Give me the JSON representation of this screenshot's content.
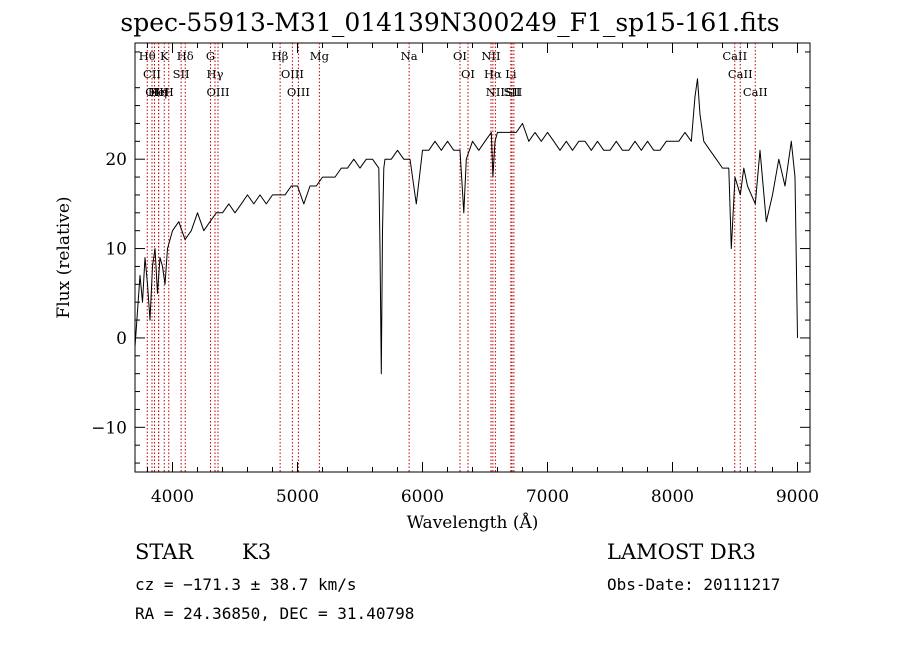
{
  "chart_data": {
    "type": "line",
    "title": "spec-55913-M31_014139N300249_F1_sp15-161.fits",
    "xlabel": "Wavelength (Å)",
    "ylabel": "Flux (relative)",
    "xlim": [
      3700,
      9100
    ],
    "ylim": [
      -15,
      33
    ],
    "xticks": [
      4000,
      5000,
      6000,
      7000,
      8000,
      9000
    ],
    "yticks": [
      -10,
      0,
      10,
      20
    ],
    "grid": false,
    "series": [
      {
        "x": [
          3700,
          3720,
          3740,
          3760,
          3780,
          3800,
          3820,
          3840,
          3860,
          3880,
          3900,
          3920,
          3940,
          3960,
          3980,
          4000,
          4050,
          4100,
          4150,
          4200,
          4250,
          4300,
          4350,
          4400,
          4450,
          4500,
          4550,
          4600,
          4650,
          4700,
          4750,
          4800,
          4850,
          4900,
          4950,
          5000,
          5050,
          5100,
          5150,
          5200,
          5250,
          5300,
          5350,
          5400,
          5450,
          5500,
          5550,
          5600,
          5650,
          5660,
          5670,
          5680,
          5690,
          5700,
          5750,
          5800,
          5850,
          5900,
          5950,
          6000,
          6050,
          6100,
          6150,
          6200,
          6250,
          6300,
          6330,
          6350,
          6400,
          6450,
          6500,
          6550,
          6563,
          6580,
          6600,
          6650,
          6700,
          6750,
          6800,
          6850,
          6900,
          6950,
          7000,
          7050,
          7100,
          7150,
          7200,
          7250,
          7300,
          7350,
          7400,
          7450,
          7500,
          7550,
          7600,
          7650,
          7700,
          7750,
          7800,
          7850,
          7900,
          7950,
          8000,
          8050,
          8100,
          8150,
          8180,
          8200,
          8220,
          8250,
          8300,
          8350,
          8400,
          8450,
          8470,
          8500,
          8542,
          8570,
          8600,
          8662,
          8700,
          8750,
          8800,
          8850,
          8900,
          8950,
          8980,
          9000
        ],
        "y": [
          -1,
          3,
          7,
          4,
          9,
          6,
          2,
          8,
          10,
          5,
          9,
          8,
          6,
          10,
          11,
          12,
          13,
          11,
          12,
          14,
          12,
          13,
          14,
          14,
          15,
          14,
          15,
          16,
          15,
          16,
          15,
          16,
          16,
          16,
          17,
          17,
          15,
          17,
          17,
          18,
          18,
          18,
          19,
          19,
          20,
          19,
          20,
          20,
          19,
          10,
          -4,
          12,
          19,
          20,
          20,
          21,
          20,
          20,
          15,
          21,
          21,
          22,
          21,
          22,
          21,
          21,
          14,
          20,
          22,
          21,
          22,
          23,
          18,
          22,
          23,
          23,
          23,
          23,
          24,
          22,
          23,
          22,
          23,
          22,
          21,
          22,
          21,
          22,
          22,
          21,
          22,
          21,
          21,
          22,
          21,
          21,
          22,
          21,
          22,
          21,
          21,
          22,
          22,
          22,
          23,
          22,
          27,
          29,
          25,
          22,
          21,
          20,
          19,
          19,
          10,
          18,
          16,
          19,
          17,
          15,
          21,
          13,
          16,
          20,
          17,
          22,
          18,
          0
        ]
      }
    ],
    "lines": [
      {
        "label": "Hθ",
        "x": 3798
      },
      {
        "label": "CII",
        "x": 3836
      },
      {
        "label": "OII",
        "x": 3856
      },
      {
        "label": "K",
        "x": 3934
      },
      {
        "label": "HeI",
        "x": 3889
      },
      {
        "label": "Hη",
        "x": 3889
      },
      {
        "label": "SII",
        "x": 4069
      },
      {
        "label": "H",
        "x": 3970
      },
      {
        "label": "Hδ",
        "x": 4102
      },
      {
        "label": "OIII",
        "x": 4364
      },
      {
        "label": "Hγ",
        "x": 4340
      },
      {
        "label": "G",
        "x": 4304
      },
      {
        "label": "Hβ",
        "x": 4861
      },
      {
        "label": "OIII",
        "x": 4959
      },
      {
        "label": "OIII",
        "x": 5007
      },
      {
        "label": "Mg",
        "x": 5175
      },
      {
        "label": "Na",
        "x": 5893
      },
      {
        "label": "OI",
        "x": 6300
      },
      {
        "label": "OI",
        "x": 6364
      },
      {
        "label": "Hα",
        "x": 6563
      },
      {
        "label": "NII",
        "x": 6548
      },
      {
        "label": "NII",
        "x": 6583
      },
      {
        "label": "SII",
        "x": 6716
      },
      {
        "label": "Li",
        "x": 6707
      },
      {
        "label": "SII",
        "x": 6731
      },
      {
        "label": "CaII",
        "x": 8498
      },
      {
        "label": "CaII",
        "x": 8542
      },
      {
        "label": "CaII",
        "x": 8662
      }
    ]
  },
  "info": {
    "class_label": "STAR",
    "subclass": "K3",
    "survey": "LAMOST DR3",
    "cz_text": "cz = −171.3 ± 38.7 km/s",
    "obs_date_text": "Obs-Date: 20111217",
    "radec_text": "RA =  24.36850, DEC =  31.40798"
  }
}
